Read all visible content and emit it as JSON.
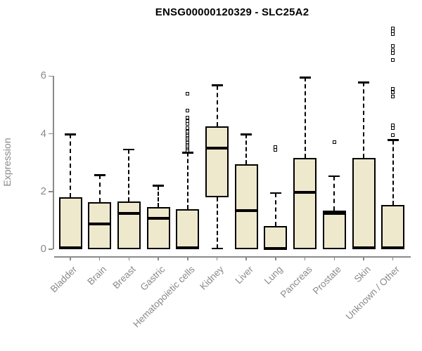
{
  "title": "ENSG00000120329 - SLC25A2",
  "chart_data": {
    "type": "boxplot",
    "title": "ENSG00000120329 - SLC25A2",
    "xlabel": "",
    "ylabel": "Expression",
    "yticks": [
      0,
      2,
      4,
      6
    ],
    "ylim": [
      0,
      7.8
    ],
    "grid": false,
    "legend": null,
    "box_fill_color": "#EEE8CD",
    "box_line_color": "#000000",
    "axis_color": "#8a8a8a",
    "categories": [
      "Bladder",
      "Brain",
      "Breast",
      "Gastric",
      "Hematopoietic cells",
      "Kidney",
      "Liver",
      "Lung",
      "Pancreas",
      "Prostate",
      "Skin",
      "Unknown / Other"
    ],
    "boxes": [
      {
        "category": "Bladder",
        "whisker_low": 0,
        "q1": 0,
        "median": 0.04,
        "q3": 1.8,
        "whisker_high": 3.98,
        "outliers": []
      },
      {
        "category": "Brain",
        "whisker_low": 0,
        "q1": 0,
        "median": 0.87,
        "q3": 1.63,
        "whisker_high": 2.57,
        "outliers": []
      },
      {
        "category": "Breast",
        "whisker_low": 0,
        "q1": 0,
        "median": 1.25,
        "q3": 1.66,
        "whisker_high": 3.45,
        "outliers": []
      },
      {
        "category": "Gastric",
        "whisker_low": 0,
        "q1": 0,
        "median": 1.08,
        "q3": 1.45,
        "whisker_high": 2.2,
        "outliers": []
      },
      {
        "category": "Hematopoietic cells",
        "whisker_low": 0,
        "q1": 0,
        "median": 0.04,
        "q3": 1.38,
        "whisker_high": 3.35,
        "outliers": [
          3.42,
          3.48,
          3.54,
          3.6,
          3.66,
          3.72,
          3.78,
          3.84,
          3.9,
          3.96,
          4.02,
          4.08,
          4.2,
          4.35,
          4.45,
          4.55,
          4.8,
          5.4
        ]
      },
      {
        "category": "Kidney",
        "whisker_low": 0.03,
        "q1": 1.8,
        "median": 3.5,
        "q3": 4.25,
        "whisker_high": 5.68,
        "outliers": []
      },
      {
        "category": "Liver",
        "whisker_low": 0,
        "q1": 0,
        "median": 1.33,
        "q3": 2.95,
        "whisker_high": 3.98,
        "outliers": []
      },
      {
        "category": "Lung",
        "whisker_low": 0,
        "q1": 0,
        "median": 0.03,
        "q3": 0.8,
        "whisker_high": 1.95,
        "outliers": [
          3.45,
          3.55
        ]
      },
      {
        "category": "Pancreas",
        "whisker_low": 0,
        "q1": 0,
        "median": 1.96,
        "q3": 3.17,
        "whisker_high": 5.95,
        "outliers": []
      },
      {
        "category": "Prostate",
        "whisker_low": 0,
        "q1": 0,
        "median": 1.25,
        "q3": 1.33,
        "whisker_high": 2.53,
        "outliers": [
          3.7
        ]
      },
      {
        "category": "Skin",
        "whisker_low": 0,
        "q1": 0,
        "median": 0.04,
        "q3": 3.16,
        "whisker_high": 5.78,
        "outliers": []
      },
      {
        "category": "Unknown / Other",
        "whisker_low": 0,
        "q1": 0,
        "median": 0.04,
        "q3": 1.53,
        "whisker_high": 3.78,
        "outliers": [
          3.95,
          4.2,
          4.3,
          5.3,
          5.45,
          5.55,
          6.55,
          6.8,
          6.9,
          7.05,
          7.45,
          7.55,
          7.65
        ]
      }
    ]
  }
}
